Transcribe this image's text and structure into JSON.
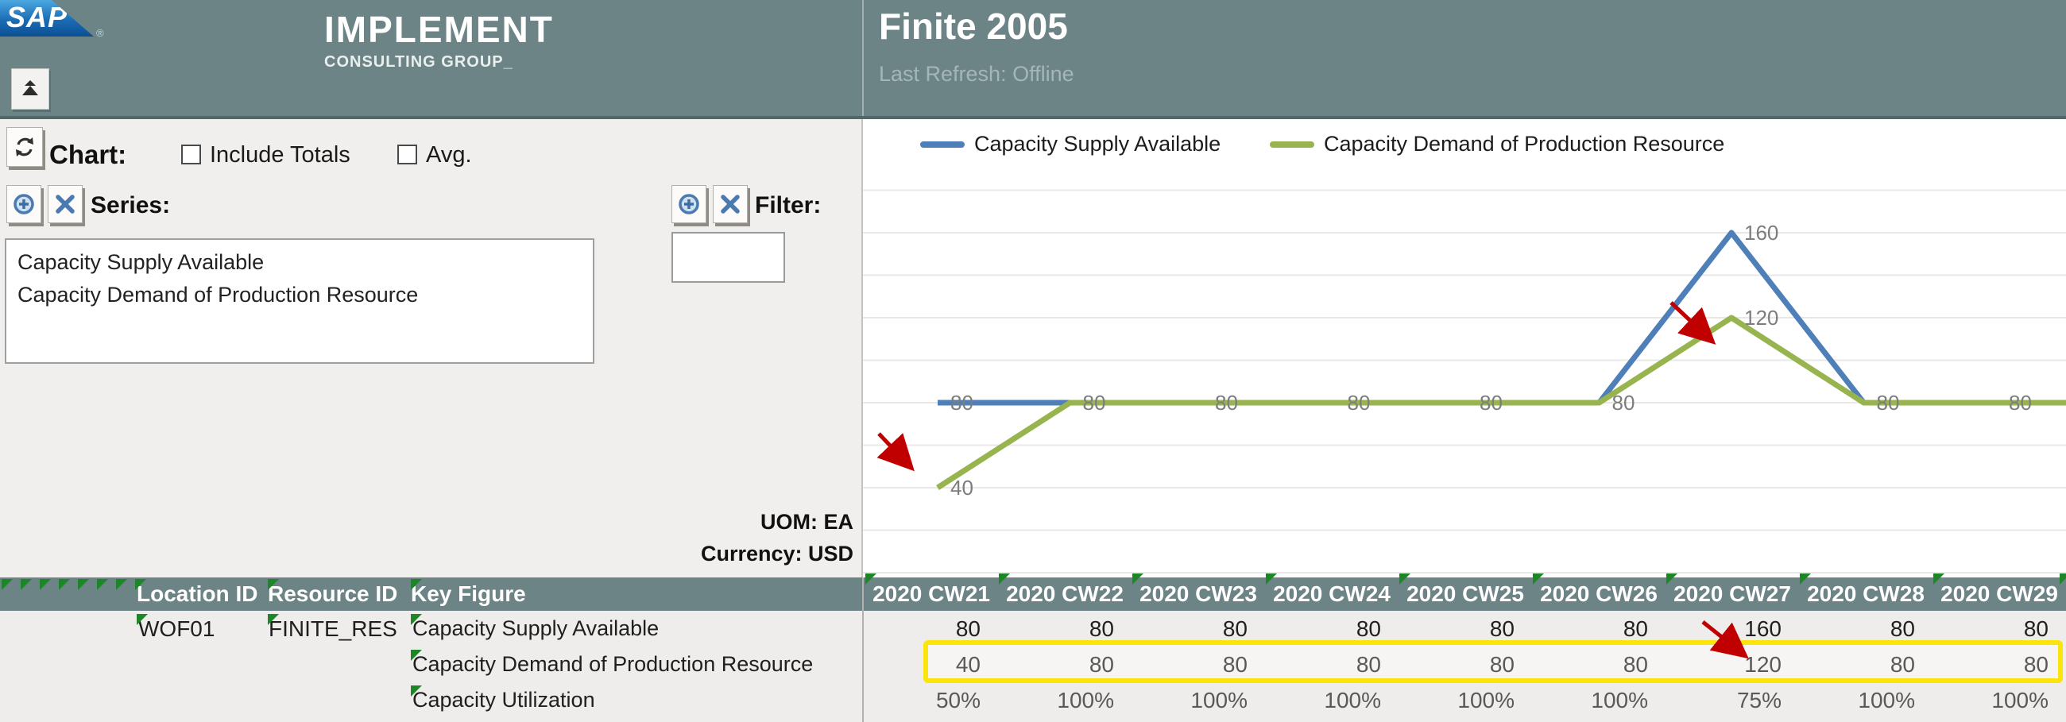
{
  "brand": {
    "sap_logo_text": "SAP",
    "registered_mark": "®",
    "name": "IMPLEMENT",
    "subtitle": "CONSULTING GROUP_"
  },
  "header": {
    "title": "Finite 2005",
    "status": "Last Refresh: Offline"
  },
  "panel": {
    "chart_label": "Chart:",
    "include_totals_label": "Include Totals",
    "include_totals_checked": false,
    "avg_label": "Avg.",
    "avg_checked": false,
    "series_label": "Series:",
    "series_items": [
      "Capacity Supply Available",
      "Capacity Demand of Production Resource"
    ],
    "filter_label": "Filter:",
    "filter_value": "",
    "uom_label": "UOM: EA",
    "currency_label": "Currency: USD"
  },
  "chart_data": {
    "type": "line",
    "categories": [
      "2020 CW21",
      "2020 CW22",
      "2020 CW23",
      "2020 CW24",
      "2020 CW25",
      "2020 CW26",
      "2020 CW27",
      "2020 CW28",
      "2020 CW29"
    ],
    "series": [
      {
        "name": "Capacity Supply Available",
        "color": "#4e7fb8",
        "values": [
          80,
          80,
          80,
          80,
          80,
          80,
          160,
          80,
          80
        ]
      },
      {
        "name": "Capacity Demand of Production Resource",
        "color": "#97b44f",
        "values": [
          40,
          80,
          80,
          80,
          80,
          80,
          120,
          80,
          80
        ]
      }
    ],
    "title": "",
    "xlabel": "",
    "ylabel": "",
    "ylim": [
      0,
      180
    ],
    "gridline_step": 20,
    "grid": true,
    "legend_position": "top",
    "data_labels": true,
    "annotations": [
      {
        "type": "red-arrow",
        "target": "demand value 40 at 2020 CW21"
      },
      {
        "type": "red-arrow",
        "target": "demand value 120 at 2020 CW27"
      },
      {
        "type": "red-arrow",
        "target": "table cell 120 at 2020 CW27"
      }
    ]
  },
  "table": {
    "headers": {
      "location": "Location ID",
      "resource": "Resource ID",
      "key_figure": "Key Figure"
    },
    "week_headers": [
      "2020 CW21",
      "2020 CW22",
      "2020 CW23",
      "2020 CW24",
      "2020 CW25",
      "2020 CW26",
      "2020 CW27",
      "2020 CW28",
      "2020 CW29"
    ],
    "rows": [
      {
        "location": "WOF01",
        "resource": "FINITE_RES",
        "key_figure": "Capacity Supply Available",
        "values": [
          "80",
          "80",
          "80",
          "80",
          "80",
          "80",
          "160",
          "80",
          "80"
        ],
        "highlight": false
      },
      {
        "location": "",
        "resource": "",
        "key_figure": "Capacity Demand of Production Resource",
        "values": [
          "40",
          "80",
          "80",
          "80",
          "80",
          "80",
          "120",
          "80",
          "80"
        ],
        "highlight": true
      },
      {
        "location": "",
        "resource": "",
        "key_figure": "Capacity Utilization",
        "values": [
          "50%",
          "100%",
          "100%",
          "100%",
          "100%",
          "100%",
          "75%",
          "100%",
          "100%"
        ],
        "highlight": false
      }
    ]
  },
  "colors": {
    "header_teal": "#6d8487",
    "panel_background": "#f0efed",
    "supply_blue": "#4e7fb8",
    "demand_green": "#97b44f",
    "highlight_yellow": "#fbe40b",
    "annotation_red": "#c00000",
    "comment_marker_green": "#1d8727",
    "data_label_gray": "#7d7d7d"
  },
  "icons": {
    "sap_logo": "sap-logo",
    "collapse": "double-chevron-up-icon",
    "refresh": "refresh-icon",
    "add": "plus-circle-icon",
    "remove": "x-icon"
  }
}
